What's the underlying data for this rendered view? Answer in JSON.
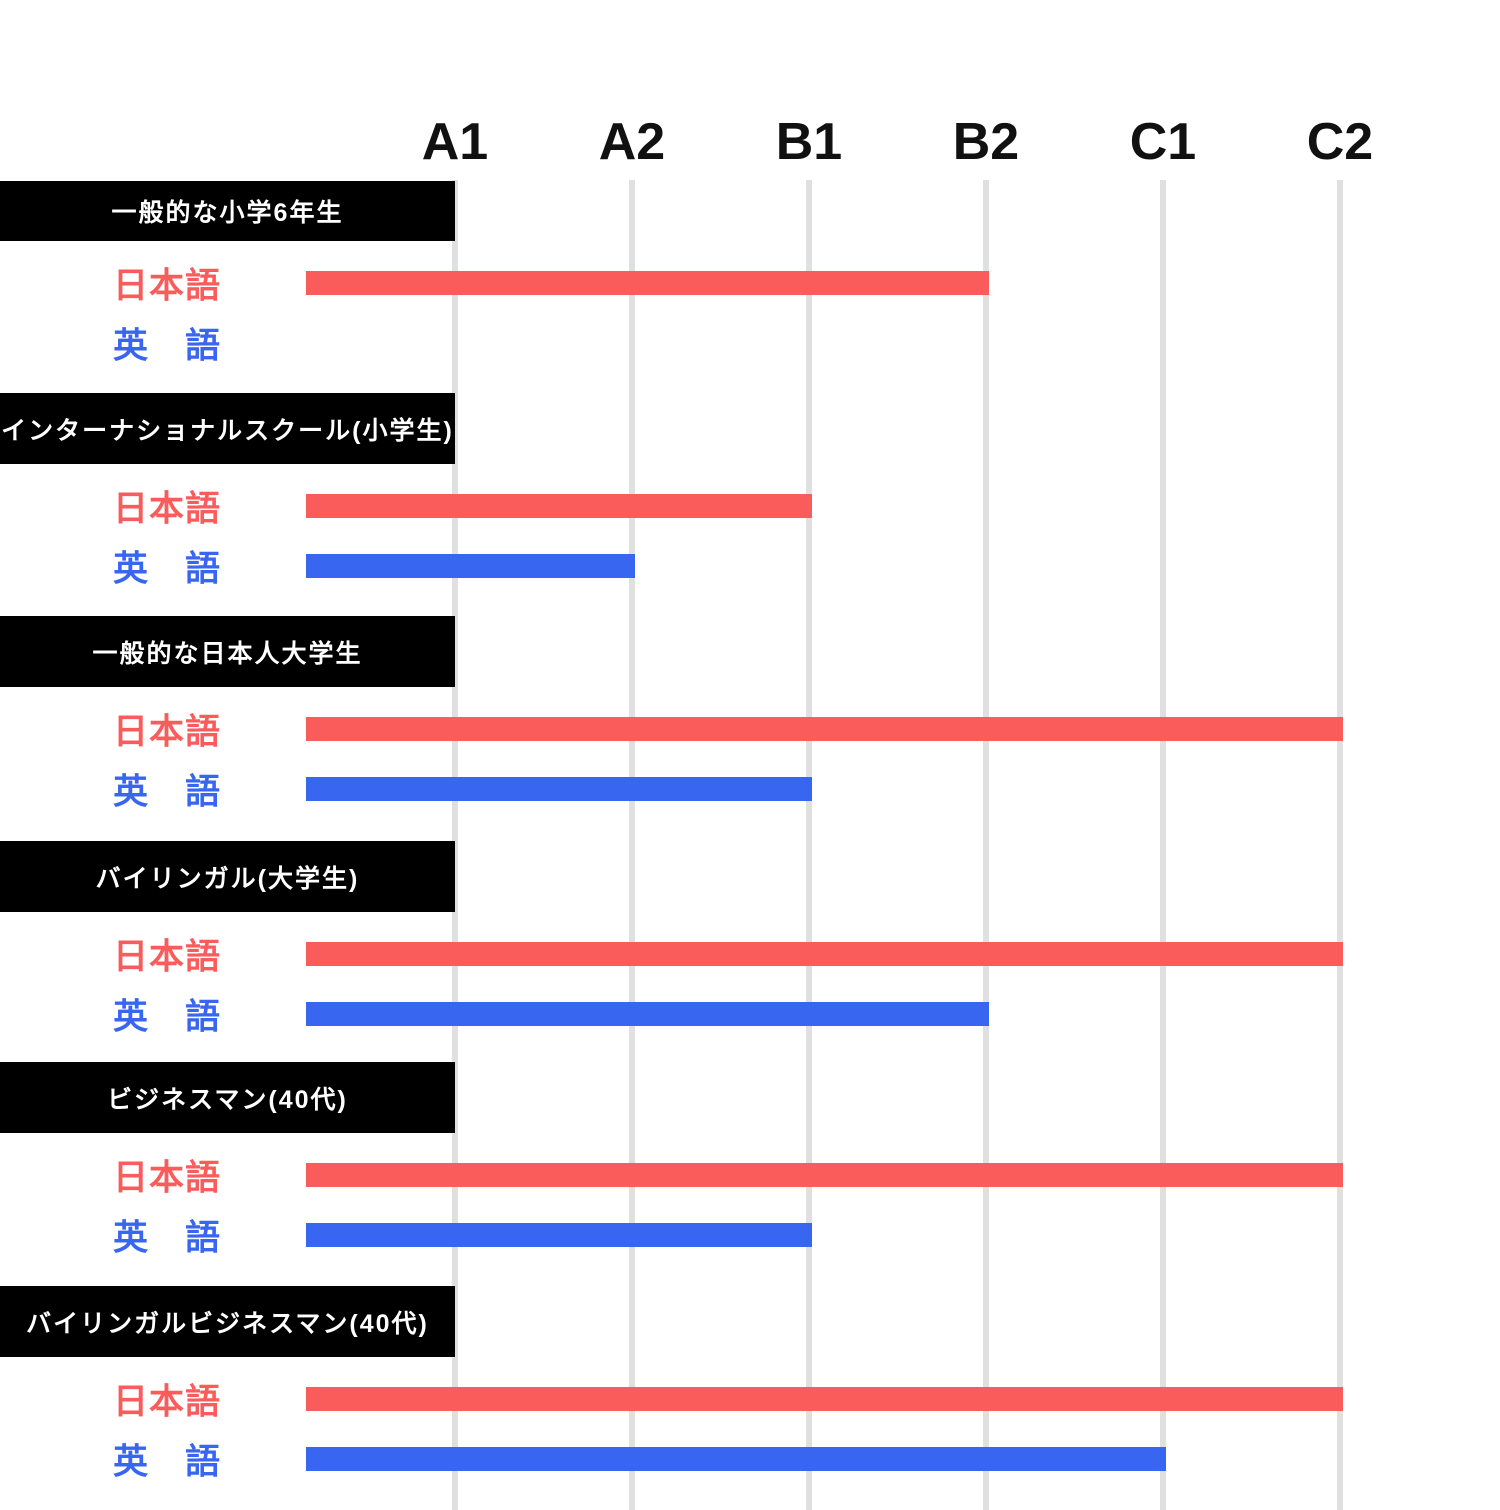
{
  "chart_data": {
    "type": "bar",
    "title": "",
    "x_axis": {
      "levels": [
        "A1",
        "A2",
        "B1",
        "B2",
        "C1",
        "C2"
      ]
    },
    "legend": {
      "japanese_label": "日本語",
      "english_label": "英　語"
    },
    "colors": {
      "japanese_bar": "#FA5C5C",
      "english_bar": "#3966F0",
      "gridline": "#E0E0E0",
      "group_box_bg": "#000000",
      "group_box_text": "#FFFFFF",
      "axis_text": "#111111"
    },
    "layout_hints": {
      "grid": "vertical-only",
      "bars_start_below": "A1",
      "orientation": "horizontal"
    },
    "groups": [
      {
        "title": "一般的な小学6年生",
        "japanese_level": "B2",
        "english_level": null
      },
      {
        "title": "インターナショナルスクール(小学生)",
        "japanese_level": "B1",
        "english_level": "A2"
      },
      {
        "title": "一般的な日本人大学生",
        "japanese_level": "C2",
        "english_level": "B1"
      },
      {
        "title": "バイリンガル(大学生)",
        "japanese_level": "C2",
        "english_level": "B2"
      },
      {
        "title": "ビジネスマン(40代)",
        "japanese_level": "C2",
        "english_level": "B1"
      },
      {
        "title": "バイリンガルビジネスマン(40代)",
        "japanese_level": "C2",
        "english_level": "C1"
      }
    ]
  }
}
